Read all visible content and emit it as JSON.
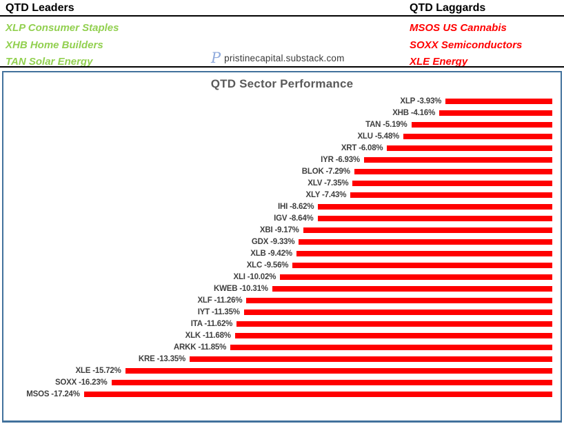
{
  "header": {
    "leaders": {
      "title": "QTD Leaders",
      "items": [
        "XLP Consumer Staples",
        "XHB Home Builders",
        "TAN Solar Energy"
      ]
    },
    "laggards": {
      "title": "QTD Laggards",
      "items": [
        "MSOS US Cannabis",
        "SOXX Semiconductors",
        "XLE Energy"
      ]
    },
    "watermark": {
      "logo_icon": "script-p-icon",
      "logo_glyph": "P",
      "text": "pristinecapital.substack.com"
    }
  },
  "colors": {
    "leader_green": "#92D050",
    "laggard_red": "#FF0000",
    "bar_red": "#FF0000",
    "chart_border_blue": "#41719C",
    "title_gray": "#595959",
    "label_gray": "#3F3F3F",
    "logo_blue": "#8FAADC"
  },
  "chart_data": {
    "type": "bar",
    "orientation": "horizontal",
    "title": "QTD Sector Performance",
    "xlabel": "",
    "ylabel": "",
    "xlim": [
      -20,
      0
    ],
    "zero_axis_side": "right",
    "grid": false,
    "legend": "none",
    "bar_color": "#FF0000",
    "value_suffix": "%",
    "categories": [
      "XLP",
      "XHB",
      "TAN",
      "XLU",
      "XRT",
      "IYR",
      "BLOK",
      "XLV",
      "XLY",
      "IHI",
      "IGV",
      "XBI",
      "GDX",
      "XLB",
      "XLC",
      "XLI",
      "KWEB",
      "XLF",
      "IYT",
      "ITA",
      "XLK",
      "ARKK",
      "KRE",
      "XLE",
      "SOXX",
      "MSOS"
    ],
    "values": [
      -3.93,
      -4.16,
      -5.19,
      -5.48,
      -6.08,
      -6.93,
      -7.29,
      -7.35,
      -7.43,
      -8.62,
      -8.64,
      -9.17,
      -9.33,
      -9.42,
      -9.56,
      -10.02,
      -10.31,
      -11.26,
      -11.35,
      -11.62,
      -11.68,
      -11.85,
      -13.35,
      -15.72,
      -16.23,
      -17.24
    ],
    "labels": [
      "XLP -3.93%",
      "XHB -4.16%",
      "TAN -5.19%",
      "XLU -5.48%",
      "XRT -6.08%",
      "IYR -6.93%",
      "BLOK -7.29%",
      "XLV -7.35%",
      "XLY -7.43%",
      "IHI -8.62%",
      "IGV -8.64%",
      "XBI -9.17%",
      "GDX -9.33%",
      "XLB -9.42%",
      "XLC -9.56%",
      "XLI -10.02%",
      "KWEB -10.31%",
      "XLF -11.26%",
      "IYT -11.35%",
      "ITA -11.62%",
      "XLK -11.68%",
      "ARKK -11.85%",
      "KRE -13.35%",
      "XLE -15.72%",
      "SOXX -16.23%",
      "MSOS -17.24%"
    ]
  }
}
